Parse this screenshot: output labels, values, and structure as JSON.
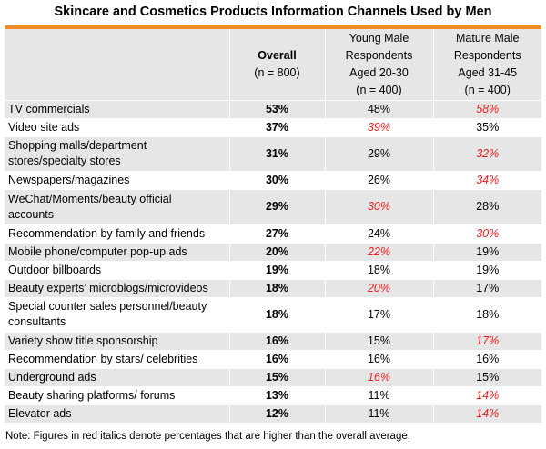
{
  "title": "Skincare and Cosmetics Products Information Channels Used by Men",
  "header": {
    "item": "",
    "overall": {
      "label": "Overall",
      "sub": "(n = 800)"
    },
    "young": {
      "line1": "Young Male",
      "line2": "Respondents",
      "line3": "Aged 20-30",
      "sub": "(n = 400)"
    },
    "mature": {
      "line1": "Mature Male",
      "line2": "Respondents",
      "line3": "Aged 31-45",
      "sub": "(n = 400)"
    }
  },
  "rows": [
    {
      "item": "TV commercials",
      "overall": "53%",
      "young": "48%",
      "mature": "58%"
    },
    {
      "item": "Video site ads",
      "overall": "37%",
      "young": "39%",
      "mature": "35%"
    },
    {
      "item_line1": "Shopping malls/department",
      "item_line2": "stores/specialty stores",
      "overall": "31%",
      "young": "29%",
      "mature": "32%"
    },
    {
      "item": "Newspapers/magazines",
      "overall": "30%",
      "young": "26%",
      "mature": "34%"
    },
    {
      "item_line1": "WeChat/Moments/beauty official",
      "item_line2": "accounts",
      "overall": "29%",
      "young": "30%",
      "mature": "28%"
    },
    {
      "item": "Recommendation by family and friends",
      "overall": "27%",
      "young": "24%",
      "mature": "30%"
    },
    {
      "item": "Mobile phone/computer pop-up ads",
      "overall": "20%",
      "young": "22%",
      "mature": "19%"
    },
    {
      "item": "Outdoor billboards",
      "overall": "19%",
      "young": "18%",
      "mature": "19%"
    },
    {
      "item": "Beauty experts’ microblogs/microvideos",
      "overall": "18%",
      "young": "20%",
      "mature": "17%"
    },
    {
      "item_line1": "Special counter sales personnel/beauty",
      "item_line2": "consultants",
      "overall": "18%",
      "young": "17%",
      "mature": "18%"
    },
    {
      "item": "Variety show title sponsorship",
      "overall": "16%",
      "young": "15%",
      "mature": "17%"
    },
    {
      "item": "Recommendation by stars/ celebrities",
      "overall": "16%",
      "young": "16%",
      "mature": "16%"
    },
    {
      "item": "Underground ads",
      "overall": "15%",
      "young": "16%",
      "mature": "15%"
    },
    {
      "item": "Beauty sharing platforms/ forums",
      "overall": "13%",
      "young": "11%",
      "mature": "14%"
    },
    {
      "item": "Elevator ads",
      "overall": "12%",
      "young": "11%",
      "mature": "14%"
    }
  ],
  "note": "Note: Figures in red italics denote percentages that are higher than the overall average."
}
